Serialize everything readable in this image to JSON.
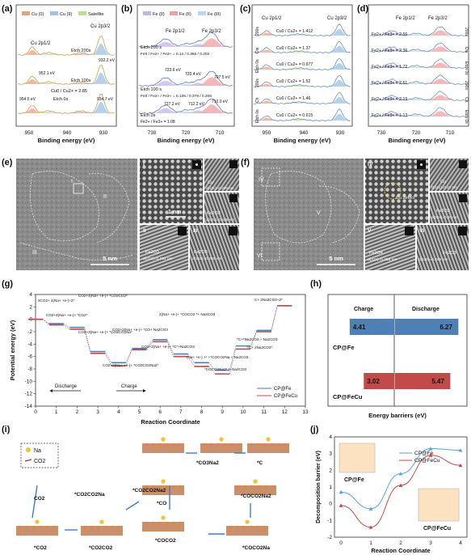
{
  "panels": {
    "a": {
      "letter": "(a)",
      "legend": [
        "Cu (0)",
        "Cu (II)",
        "Satellite"
      ],
      "legend_colors": [
        "#e9a07c",
        "#9ec2e6",
        "#b9df8f"
      ],
      "labels": [
        "Cu 2p1/2",
        "Cu 2p3/2",
        "Etch 200s",
        "932.2 eV",
        "952.1 eV",
        "Etch 100s",
        "Cu0 / Cu2+ = 2.85",
        "954.5 eV",
        "Etch 0s",
        "934.7 eV"
      ],
      "ticks": [
        "950",
        "940",
        "930"
      ],
      "xlabel": "Binding energy (eV)"
    },
    "b": {
      "letter": "(b)",
      "legend": [
        "Fe (0)",
        "Fe (II)",
        "Fe (III)"
      ],
      "legend_colors": [
        "#c6b4e6",
        "#f0a0a0",
        "#b8d8f0"
      ],
      "labels": [
        "Fe 2p1/2",
        "Fe 2p3/2",
        "Etch 200 s",
        "Fe0 / Fe2+ / Fe3+ = 0.14 / 0.366 / 0.202",
        "723.6 eV",
        "720.4 eV",
        "707.5 eV",
        "Etch 100 s",
        "Fe0 / Fe2+ / Fe3+ = 0.135 / 0.378 / 0.206",
        "727.2 eV",
        "712.2 eV",
        "710.0 eV",
        "Etch 0s",
        "Fe2+ / Fe3+ = 1.08"
      ],
      "ticks": [
        "730",
        "720",
        "710"
      ],
      "xlabel": "Binding energy (eV)"
    },
    "c": {
      "letter": "(c)",
      "labels": [
        "Cu 2p1/2",
        "Cu 2p3/2"
      ],
      "ratios": [
        "Cu0 / Cu2+ = 1.412",
        "Cu0 / Cu2+ = 1.37",
        "Cu0 / Cu2+ = 0.977",
        "Cu0 / Cu2+ = 1.52",
        "Cu0 / Cu2+ = 1.46",
        "Cu0 / Cu2+ = 0.615"
      ],
      "side": [
        "200s",
        "Dis",
        "Etch 0s",
        "200s",
        "Ch",
        "Etch 0s"
      ],
      "ticks": [
        "950",
        "940",
        "930"
      ],
      "xlabel": "Binding energy (eV)"
    },
    "d": {
      "letter": "(d)",
      "labels": [
        "Fe 2p1/2",
        "Fe 2p3/2"
      ],
      "ratios": [
        "Fe2+ / Fe3+ = 2.66",
        "Fe2+ / Fe3+ = 2.36",
        "Fe2+ / Fe3+ = 1.72",
        "Fe2+ / Fe3+ = 2.51",
        "Fe2+ / Fe3+ = 2.19",
        "Fe2+ / Fe3+ = 1.13"
      ],
      "side": [
        "200s",
        "Dis",
        "Etch 0s",
        "200s",
        "Ch",
        "Etch 0s"
      ],
      "ticks": [
        "730",
        "720",
        "710"
      ],
      "xlabel": "Binding energy (eV)"
    },
    "e": {
      "letter": "(e)",
      "roman": [
        "I",
        "II",
        "III"
      ],
      "scale_main": "5 nm",
      "scale_inset": "1 nm",
      "insets": [
        "Cu",
        "d(111)=0.209 nm",
        "Fe2O3",
        "d(024)=0.188 nm",
        "Fe2O3",
        "d(012)=0.292 nm",
        "Fe2O3",
        "d(110)=0.255 nm"
      ]
    },
    "f": {
      "letter": "(f)",
      "roman": [
        "IV",
        "V",
        "VI"
      ],
      "scale_main": "5 nm",
      "insets": [
        "Cu defect",
        "Cu",
        "d(111)=0.21 nm",
        "Fe2O3",
        "d(024)=0.20 nm",
        "Fe3O4",
        "d(311)=0.258 nm",
        "Fe2O3",
        "d(110)=0.255 nm"
      ]
    },
    "g": {
      "letter": "(g)",
      "ylabel": "Potential energy (eV)",
      "xlabel": "Reaction Coordinate",
      "annotations": [
        "3CO2+ 4(Na+ +e-)+2*",
        "CO2+4(Na+ +e-)+ *CO2CO2*",
        "CO2+4(Na+ +e-)+ *CO2*",
        "CO2+3(Na+ +e-)+ *CO2CO2Na*",
        "CO2+2(Na+ +e-)+ *CO2CO2Na2*",
        "CO2+2(Na+ +e-)+ *CO+ Na2CO3",
        "2(Na+ +e-)+ *COCO2 *+ Na2CO3",
        "CO2+2(Na+ +e-)+ *C*+Na2CO3",
        "(Na+ +e-) +* +*COCO2Na + Na2CO3",
        "*COCO2Na2* *+Na2CO3",
        "*C+*Na2CO3 + Na2CO3",
        "*C+ 2Na2CO3*",
        "C+ 2Na2CO3+2*"
      ],
      "arrows": [
        "Discharge",
        "Charge"
      ],
      "legend": [
        "CP@Fe",
        "CP@FeCu"
      ]
    },
    "h": {
      "letter": "(h)",
      "headers": [
        "Charge",
        "Discharge"
      ],
      "rows": [
        {
          "name": "CP@Fe",
          "charge": "4.41",
          "discharge": "6.27",
          "color": "#4e7fb5"
        },
        {
          "name": "CP@FeCu",
          "charge": "3.02",
          "discharge": "5.47",
          "color": "#c44a4a"
        }
      ],
      "xlabel": "Energy barriers (eV)"
    },
    "i": {
      "letter": "(i)",
      "legend": [
        "Na",
        "CO2"
      ],
      "labels": [
        "*CO2CO2Na2",
        "*CO3Na2",
        "*C",
        "*CO2CO2Na",
        "*CO",
        "*COCO2Na2",
        "CO2",
        "*COCO2",
        "*CO2",
        "*CO2CO2",
        "*COCO2Na"
      ]
    },
    "j": {
      "letter": "(j)",
      "ylabel": "Decomposition barrier (eV)",
      "xlabel": "Reaction Coordinate",
      "legend": [
        "CP@Fe",
        "CP@FeCu"
      ],
      "labels": [
        "CP@Fe",
        "CP@FeCu"
      ]
    }
  },
  "chart_data": [
    {
      "type": "line",
      "title": "",
      "xlabel": "Reaction Coordinate",
      "ylabel": "Potential energy (eV)",
      "xlim": [
        0,
        13
      ],
      "ylim": [
        -14,
        4
      ],
      "x": [
        0,
        1,
        2,
        3,
        4,
        5,
        6,
        7,
        8,
        9,
        10,
        11,
        12
      ],
      "series": [
        {
          "name": "CP@Fe",
          "values": [
            0,
            -0.7,
            -1.3,
            -5.2,
            -7.0,
            -4.7,
            -3.3,
            -5.6,
            -7.0,
            -8.2,
            -4.3,
            -1.8,
            2.2
          ]
        },
        {
          "name": "CP@FeCu",
          "values": [
            0,
            -0.9,
            -1.6,
            -5.5,
            -7.5,
            -4.9,
            -3.6,
            -6.0,
            -7.6,
            -8.8,
            -4.8,
            -2.0,
            2.2
          ]
        }
      ]
    },
    {
      "type": "bar",
      "title": "",
      "xlabel": "Energy barriers (eV)",
      "categories": [
        "CP@Fe",
        "CP@FeCu"
      ],
      "series": [
        {
          "name": "Charge",
          "values": [
            4.41,
            3.02
          ]
        },
        {
          "name": "Discharge",
          "values": [
            6.27,
            5.47
          ]
        }
      ]
    },
    {
      "type": "line",
      "title": "",
      "xlabel": "Reaction Coordinate",
      "ylabel": "Decomposition barrier (eV)",
      "xlim": [
        0,
        4
      ],
      "ylim": [
        -2,
        4
      ],
      "x": [
        0,
        1,
        2,
        3,
        4
      ],
      "series": [
        {
          "name": "CP@Fe",
          "values": [
            0.7,
            -0.3,
            1.8,
            3.3,
            3.2
          ]
        },
        {
          "name": "CP@FeCu",
          "values": [
            -0.1,
            -1.4,
            1.1,
            2.9,
            2.3
          ]
        }
      ]
    }
  ]
}
